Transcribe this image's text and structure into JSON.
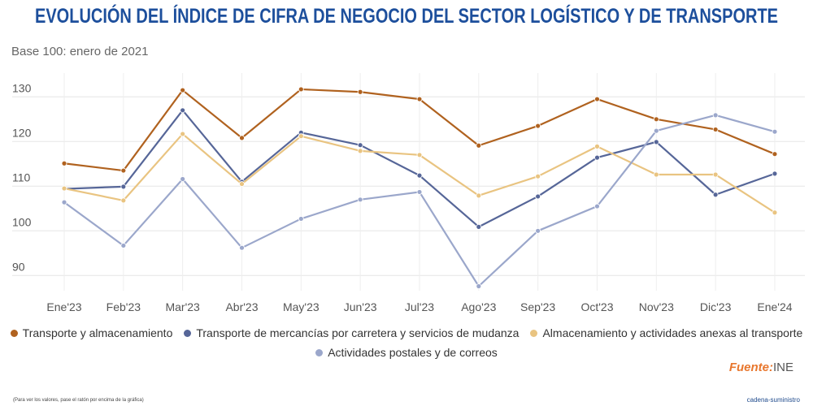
{
  "title": "EVOLUCIÓN DEL ÍNDICE DE CIFRA DE NEGOCIO DEL SECTOR LOGÍSTICO Y DE TRANSPORTE",
  "subtitle": "Base 100: enero de 2021",
  "source_label": "Fuente:",
  "source_value": "INE",
  "note": "(Para ver los valores, pase el ratón por encima de la gráfica)",
  "brand": "cadena-suministro",
  "colors": {
    "title": "#1d4f9c"
  },
  "chart_data": {
    "type": "line",
    "title": "EVOLUCIÓN DEL ÍNDICE DE CIFRA DE NEGOCIO DEL SECTOR LOGÍSTICO Y DE TRANSPORTE",
    "xlabel": "",
    "ylabel": "",
    "ylim": [
      82,
      134
    ],
    "yticks": [
      90,
      100,
      110,
      120,
      130
    ],
    "grid": true,
    "legend_position": "bottom",
    "categories": [
      "Ene'23",
      "Feb'23",
      "Mar'23",
      "Abr'23",
      "May'23",
      "Jun'23",
      "Jul'23",
      "Ago'23",
      "Sep'23",
      "Oct'23",
      "Nov'23",
      "Dic'23",
      "Ene'24"
    ],
    "series": [
      {
        "name": "Transporte y almacenamiento",
        "color": "#b0621f",
        "values": [
          115.1,
          113.5,
          131.5,
          120.8,
          131.7,
          131.1,
          129.5,
          119.1,
          123.5,
          129.5,
          125.0,
          122.7,
          117.2
        ]
      },
      {
        "name": "Transporte de mercancías por carretera y servicios de mudanza",
        "color": "#566698",
        "values": [
          109.4,
          109.9,
          127.0,
          111.0,
          122.0,
          119.2,
          112.4,
          100.9,
          107.7,
          116.4,
          119.9,
          108.1,
          112.8
        ]
      },
      {
        "name": "Almacenamiento y actividades anexas al transporte",
        "color": "#e9c481",
        "values": [
          109.5,
          106.8,
          121.7,
          110.5,
          121.2,
          117.9,
          117.0,
          107.9,
          112.2,
          118.9,
          112.6,
          112.6,
          104.1
        ]
      },
      {
        "name": "Actividades postales y de correos",
        "color": "#9ba7cb",
        "values": [
          106.4,
          96.7,
          111.6,
          96.2,
          102.7,
          107.0,
          108.7,
          87.6,
          100.0,
          105.5,
          122.4,
          125.9,
          122.2
        ]
      }
    ]
  }
}
